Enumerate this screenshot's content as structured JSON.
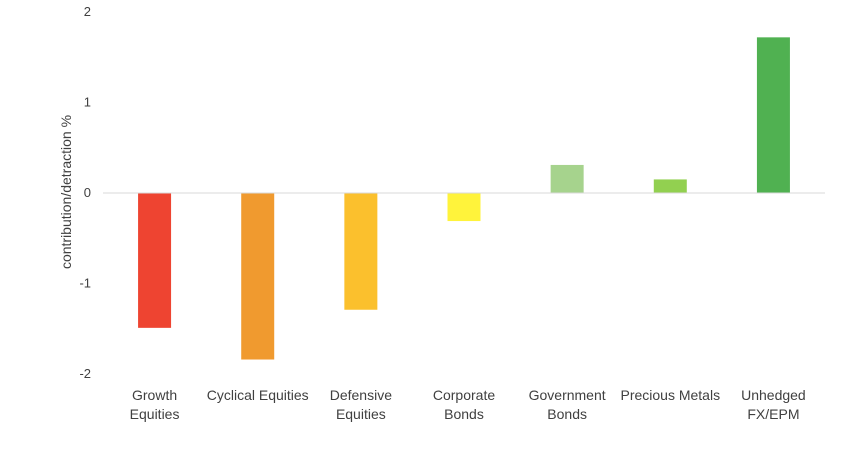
{
  "chart_data": {
    "type": "bar",
    "title": "",
    "xlabel": "",
    "ylabel": "contribution/detraction %",
    "ylim": [
      -2,
      2
    ],
    "yticks": [
      2,
      1,
      0,
      -1,
      -2
    ],
    "grid": false,
    "legend": "none",
    "categories": [
      [
        "Growth",
        "Equities"
      ],
      [
        "Cyclical Equities"
      ],
      [
        "Defensive",
        "Equities"
      ],
      [
        "Corporate",
        "Bonds"
      ],
      [
        "Government",
        "Bonds"
      ],
      [
        "Precious Metals"
      ],
      [
        "Unhedged",
        "FX/EPM"
      ]
    ],
    "values": [
      -1.49,
      -1.84,
      -1.29,
      -0.31,
      0.31,
      0.15,
      1.72
    ],
    "colors": [
      "#EE4431",
      "#F09A2F",
      "#FBC02D",
      "#FFF33B",
      "#A6D38D",
      "#92D050",
      "#50B151"
    ],
    "axis_color": "#D9D9D9",
    "text_color": "#404040"
  }
}
